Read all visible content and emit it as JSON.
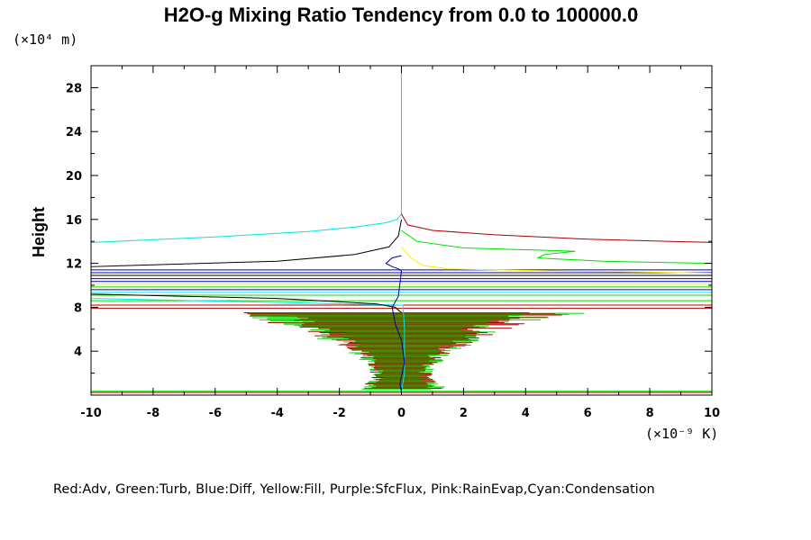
{
  "chart_data": {
    "type": "line",
    "title": "H2O-g Mixing Ratio Tendency from 0.0 to 100000.0",
    "ylabel": "Height",
    "y_scale_label": "(×10⁴ m)",
    "x_scale_label": "(×10⁻⁹ K)",
    "xlim": [
      -10,
      10
    ],
    "ylim": [
      0,
      30
    ],
    "x_ticks": [
      "-10",
      "-8",
      "-6",
      "-4",
      "-2",
      "0",
      "2",
      "4",
      "6",
      "8",
      "10"
    ],
    "y_ticks": [
      "4",
      "8",
      "12",
      "16",
      "20",
      "24",
      "28"
    ],
    "legend_text": "Red:Adv, Green:Turb, Blue:Diff, Yellow:Fill, Purple:SfcFlux, Pink:RainEvap,Cyan:Condensation",
    "colors": {
      "Adv": "#b00000",
      "Turb": "#00dd00",
      "Diff": "#0000aa",
      "Fill": "#ffee00",
      "Condensation": "#00e5e5",
      "Black": "#000000"
    },
    "series": [
      {
        "color": "#00e5e5",
        "x": [
          0,
          0,
          0,
          -0.05,
          -0.15,
          -0.5,
          -1.5,
          -3,
          -6,
          -10,
          -10,
          -10,
          0.05,
          0.1,
          0.1,
          0
        ],
        "y": [
          30,
          20,
          16.5,
          16.3,
          16.0,
          15.7,
          15.3,
          14.9,
          14.4,
          13.9,
          9.0,
          8.8,
          8.2,
          6,
          2,
          0.3
        ]
      },
      {
        "color": "#000000",
        "x": [
          0,
          -0.1,
          -0.4,
          -1.5,
          -4,
          -10,
          -10,
          -7,
          -4,
          -2,
          -0.8,
          -0.2,
          0
        ],
        "y": [
          16.0,
          14.5,
          13.5,
          12.8,
          12.2,
          11.7,
          9.2,
          9.0,
          8.8,
          8.5,
          8.3,
          8.0,
          7.5
        ]
      },
      {
        "color": "#b00000",
        "x": [
          0,
          0.2,
          1,
          3,
          6,
          10
        ],
        "y": [
          16.5,
          15.5,
          15.0,
          14.6,
          14.2,
          13.9
        ]
      },
      {
        "color": "#00dd00",
        "x": [
          0,
          0.5,
          2,
          4.5,
          5.6,
          4.6,
          4.4,
          5,
          6.5,
          8,
          10
        ],
        "y": [
          15.0,
          14.0,
          13.4,
          13.2,
          13.1,
          12.8,
          12.5,
          12.4,
          12.2,
          12.1,
          12.0
        ]
      },
      {
        "color": "#ffee00",
        "x": [
          0,
          0.3,
          0.7,
          1.5,
          3,
          5,
          8,
          10
        ],
        "y": [
          13.5,
          12.5,
          11.8,
          11.5,
          11.4,
          11.3,
          11.2,
          11.1
        ]
      },
      {
        "color": "#0000aa",
        "x": [
          0,
          -0.3,
          -0.5,
          -0.3,
          -0.1,
          0,
          -0.1,
          -0.3,
          -0.2,
          0,
          0.1,
          -0.05,
          0
        ],
        "y": [
          12.7,
          12.5,
          12.0,
          11.7,
          11.5,
          11.3,
          9.0,
          8.0,
          6.5,
          5.0,
          3.0,
          1.0,
          0.3
        ]
      }
    ],
    "horizontal_segments": [
      {
        "y": 11.4,
        "x1": -10,
        "x2": 10,
        "color": "#0000aa"
      },
      {
        "y": 11.15,
        "x1": -10,
        "x2": 10,
        "color": "#0000aa"
      },
      {
        "y": 10.9,
        "x1": -10,
        "x2": 10,
        "color": "#000000"
      },
      {
        "y": 10.6,
        "x1": -10,
        "x2": 10,
        "color": "#0000aa"
      },
      {
        "y": 10.35,
        "x1": -10,
        "x2": 10,
        "color": "#0000aa"
      },
      {
        "y": 10.1,
        "x1": -10,
        "x2": 10,
        "color": "#ffee00"
      },
      {
        "y": 9.85,
        "x1": -10,
        "x2": 10,
        "color": "#00dd00"
      },
      {
        "y": 9.6,
        "x1": -10,
        "x2": 10,
        "color": "#0000aa"
      },
      {
        "y": 9.35,
        "x1": -10,
        "x2": 10,
        "color": "#00e5e5"
      },
      {
        "y": 9.1,
        "x1": -10,
        "x2": 10,
        "color": "#00dd00"
      },
      {
        "y": 8.6,
        "x1": -10,
        "x2": 10,
        "color": "#00dd00"
      },
      {
        "y": 8.2,
        "x1": -10,
        "x2": 10,
        "color": "#b00000"
      },
      {
        "y": 7.9,
        "x1": -10,
        "x2": 10,
        "color": "#b00000"
      },
      {
        "y": 0.35,
        "x1": -10,
        "x2": 10,
        "color": "#00dd00"
      },
      {
        "y": 0.25,
        "x1": -10,
        "x2": 10,
        "color": "#b00000"
      }
    ],
    "noise_band": {
      "colors": [
        "#b00000",
        "#00dd00"
      ],
      "levels": [
        {
          "y": 7.5,
          "hw": 6.0
        },
        {
          "y": 7.0,
          "hw": 5.0
        },
        {
          "y": 6.5,
          "hw": 4.2
        },
        {
          "y": 6.0,
          "hw": 3.5
        },
        {
          "y": 5.5,
          "hw": 3.0
        },
        {
          "y": 5.0,
          "hw": 2.6
        },
        {
          "y": 4.5,
          "hw": 2.2
        },
        {
          "y": 4.0,
          "hw": 1.8
        },
        {
          "y": 3.5,
          "hw": 1.5
        },
        {
          "y": 3.0,
          "hw": 1.3
        },
        {
          "y": 2.5,
          "hw": 1.1
        },
        {
          "y": 2.0,
          "hw": 1.0
        },
        {
          "y": 1.5,
          "hw": 1.0
        },
        {
          "y": 1.0,
          "hw": 1.3
        },
        {
          "y": 0.5,
          "hw": 1.6
        }
      ]
    }
  }
}
